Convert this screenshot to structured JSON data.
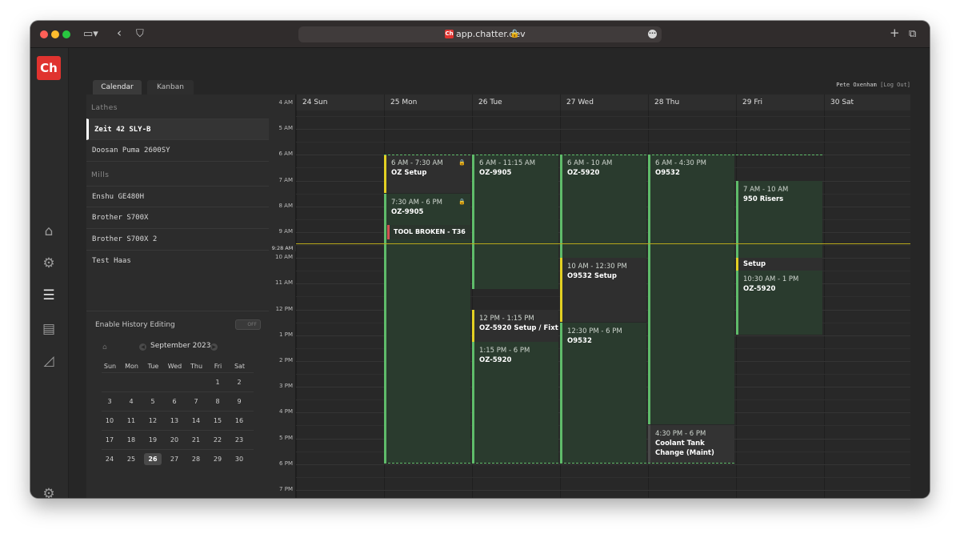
{
  "browser": {
    "url": "app.chatter.dev",
    "favicon_text": "Ch"
  },
  "app": {
    "logo_text": "Ch",
    "tabs": [
      {
        "label": "Calendar",
        "active": true
      },
      {
        "label": "Kanban",
        "active": false
      }
    ],
    "user": {
      "name": "Pete Oxenham",
      "logout": "[Log Out]"
    },
    "rail_icons": [
      "home-icon",
      "machine-sensor-icon",
      "layers-icon",
      "document-icon",
      "chart-icon",
      "settings-icon"
    ]
  },
  "machines": {
    "groups": [
      {
        "label": "Lathes",
        "items": [
          {
            "label": "Zeit 42 SLY-B",
            "active": true
          },
          {
            "label": "Doosan Puma 2600SY",
            "active": false
          }
        ]
      },
      {
        "label": "Mills",
        "items": [
          {
            "label": "Enshu GE480H",
            "active": false
          },
          {
            "label": "Brother S700X",
            "active": false
          },
          {
            "label": "Brother S700X 2",
            "active": false
          },
          {
            "label": "Test Haas",
            "active": false
          }
        ]
      }
    ]
  },
  "history": {
    "label": "Enable History Editing",
    "toggle": "OFF"
  },
  "mini_calendar": {
    "month": "September 2023",
    "weekdays": [
      "Sun",
      "Mon",
      "Tue",
      "Wed",
      "Thu",
      "Fri",
      "Sat"
    ],
    "weeks": [
      [
        "",
        "",
        "",
        "",
        "",
        "1",
        "2"
      ],
      [
        "3",
        "4",
        "5",
        "6",
        "7",
        "8",
        "9"
      ],
      [
        "10",
        "11",
        "12",
        "13",
        "14",
        "15",
        "16"
      ],
      [
        "17",
        "18",
        "19",
        "20",
        "21",
        "22",
        "23"
      ],
      [
        "24",
        "25",
        "26",
        "27",
        "28",
        "29",
        "30"
      ]
    ],
    "today": "26"
  },
  "calendar": {
    "days": [
      "24 Sun",
      "25 Mon",
      "26 Tue",
      "27 Wed",
      "28 Thu",
      "29 Fri",
      "30 Sat"
    ],
    "hours": [
      "4 AM",
      "5 AM",
      "6 AM",
      "7 AM",
      "8 AM",
      "9 AM",
      "10 AM",
      "11 AM",
      "12 PM",
      "1 PM",
      "2 PM",
      "3 PM",
      "4 PM",
      "5 PM",
      "6 PM",
      "7 PM"
    ],
    "now_label": "9:28 AM",
    "events": [
      {
        "time": "6 AM - 7:30 AM",
        "name": "OZ Setup",
        "kind": "setup",
        "locked": true
      },
      {
        "time": "7:30 AM - 6 PM",
        "name": "OZ-9905",
        "kind": "job",
        "locked": true
      },
      {
        "time": "6 AM - 11:15 AM",
        "name": "OZ-9905",
        "kind": "job",
        "locked": false
      },
      {
        "time": "12 PM - 1:15 PM",
        "name": "OZ-5920 Setup / Fixt",
        "kind": "setup",
        "locked": false
      },
      {
        "time": "1:15 PM - 6 PM",
        "name": "OZ-5920",
        "kind": "job",
        "locked": false
      },
      {
        "time": "6 AM - 10 AM",
        "name": "OZ-5920",
        "kind": "job",
        "locked": false
      },
      {
        "time": "10 AM - 12:30 PM",
        "name": "O9532 Setup",
        "kind": "setup",
        "locked": false
      },
      {
        "time": "12:30 PM - 6 PM",
        "name": "O9532",
        "kind": "job",
        "locked": false
      },
      {
        "time": "6 AM - 4:30 PM",
        "name": "O9532",
        "kind": "job",
        "locked": false
      },
      {
        "time": "4:30 PM - 6 PM",
        "name": "Coolant Tank Change (Maint)",
        "kind": "maint",
        "locked": false
      },
      {
        "time": "7 AM - 10 AM",
        "name": "950 Risers",
        "kind": "job",
        "locked": false
      },
      {
        "time": "",
        "name": "Setup",
        "kind": "setup",
        "locked": false
      },
      {
        "time": "10:30 AM - 1 PM",
        "name": "OZ-5920",
        "kind": "job",
        "locked": false
      }
    ],
    "alert": {
      "label": "TOOL BROKEN - T36"
    }
  },
  "colors": {
    "job": "#5fbb6a",
    "setup": "#e3d023",
    "alert": "#d25353",
    "now_line": "#b8a81a",
    "logo": "#e0332f"
  }
}
